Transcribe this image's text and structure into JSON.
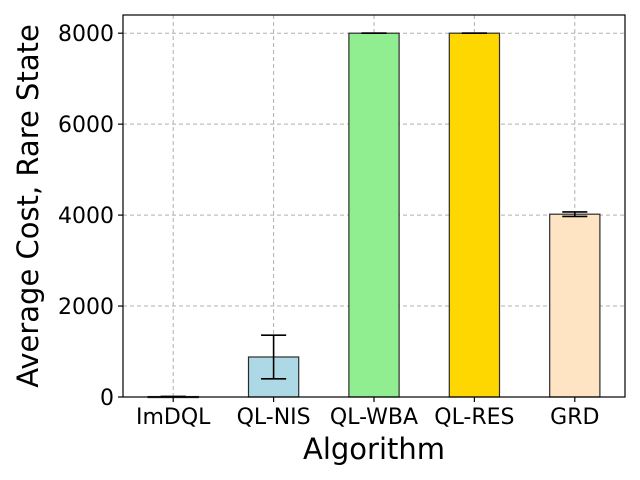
{
  "chart_data": {
    "type": "bar",
    "title": "",
    "xlabel": "Algorithm",
    "ylabel": "Average Cost, Rare State",
    "categories": [
      "ImDQL",
      "QL-NIS",
      "QL-WBA",
      "QL-RES",
      "GRD"
    ],
    "values": [
      10,
      880,
      8000,
      8000,
      4020
    ],
    "errors": [
      0,
      480,
      0,
      0,
      50
    ],
    "colors": [
      "#add8e6",
      "#add8e6",
      "#90ee90",
      "#ffd700",
      "#ffe4c4"
    ],
    "ylim": [
      0,
      8400
    ],
    "yticks": [
      0,
      2000,
      4000,
      6000,
      8000
    ],
    "grid": true
  }
}
